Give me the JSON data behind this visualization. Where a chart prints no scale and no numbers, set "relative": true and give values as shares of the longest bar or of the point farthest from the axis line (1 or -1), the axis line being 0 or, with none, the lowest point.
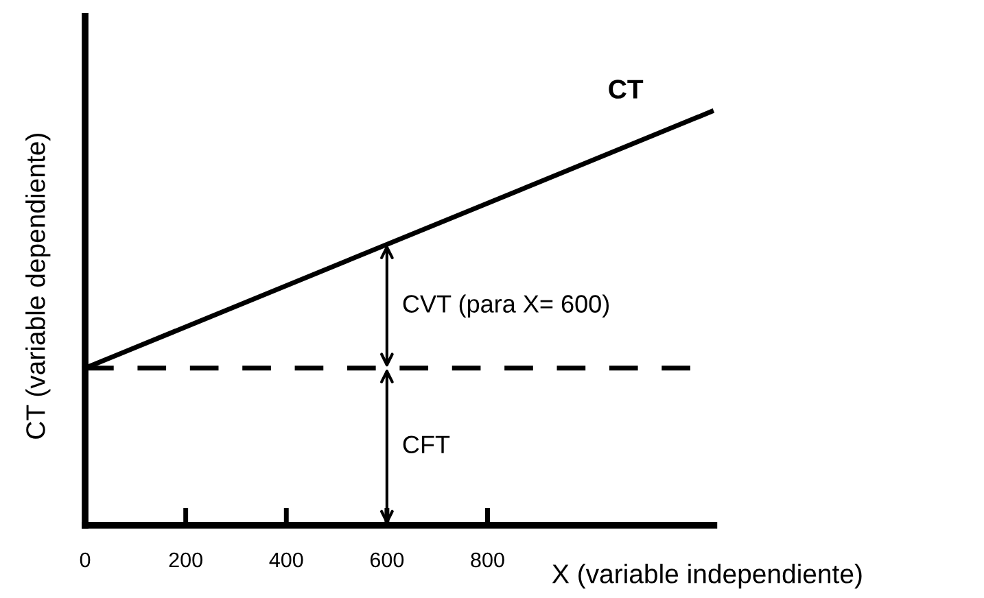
{
  "chart_data": {
    "type": "line",
    "xlabel": "X (variable independiente)",
    "ylabel": "CT (variable dependiente)",
    "relative": true,
    "xlim": [
      0,
      1250
    ],
    "xticks": [
      0,
      200,
      400,
      600,
      800
    ],
    "tick_labels": "x",
    "grid": false,
    "legend": false,
    "marker": "none",
    "line_style": "solid",
    "series": [
      {
        "name": "CT",
        "color": "#000000",
        "x": [
          0,
          1245
        ],
        "values": [
          0.38,
          1
        ]
      }
    ],
    "ref_lines": [
      {
        "axis": "y",
        "value": 0.38,
        "color": "#000000",
        "line_style": "dashed"
      }
    ],
    "annotations": [
      {
        "text": "CVT (para X= 600)",
        "x": 600,
        "y": 0.68
      },
      "CFT"
    ]
  }
}
